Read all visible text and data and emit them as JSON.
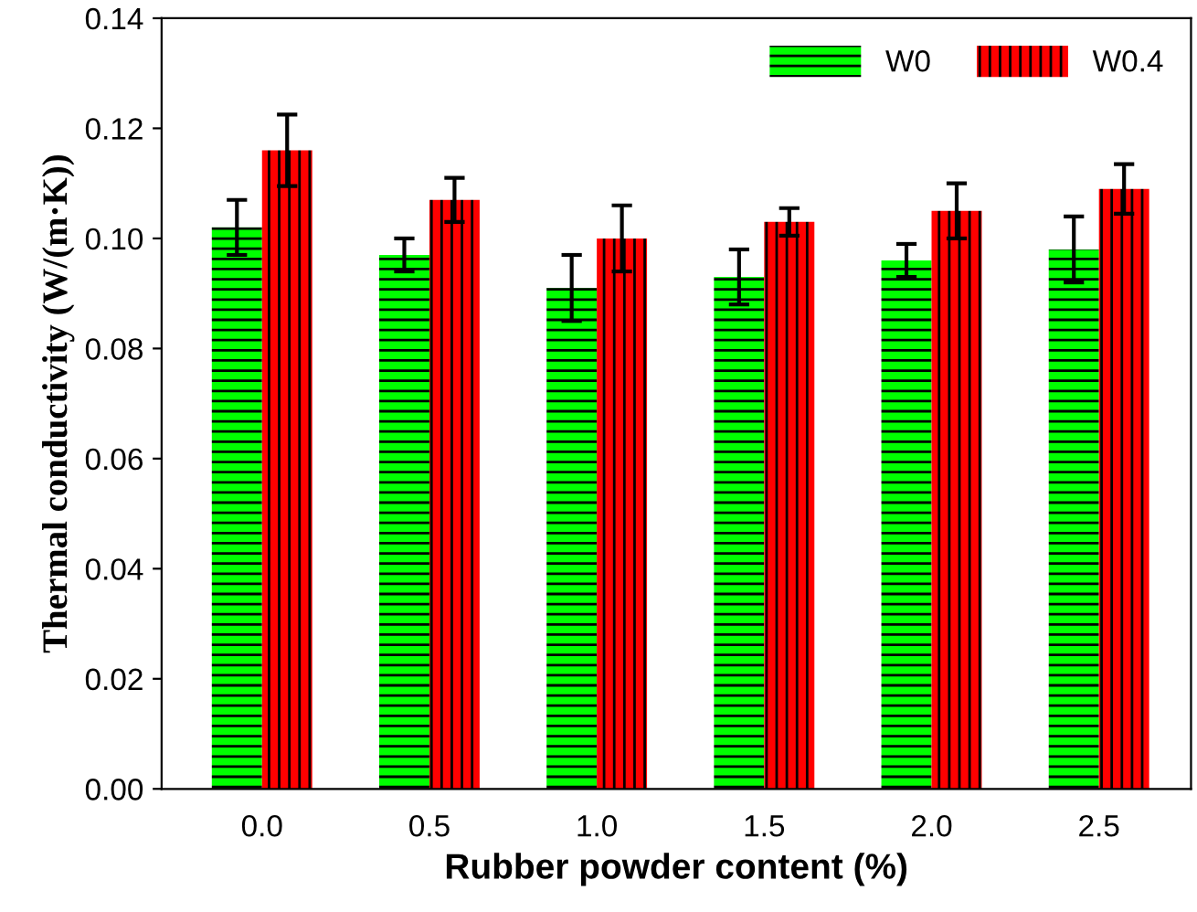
{
  "chart_data": {
    "type": "bar",
    "xlabel": "Rubber powder content (%)",
    "ylabel": "Thermal conductivity (W/(m·K))",
    "categories": [
      "0.0",
      "0.5",
      "1.0",
      "1.5",
      "2.0",
      "2.5"
    ],
    "series": [
      {
        "name": "W0",
        "color": "#00ff00",
        "values": [
          0.102,
          0.097,
          0.091,
          0.093,
          0.096,
          0.098
        ],
        "errors": [
          0.005,
          0.003,
          0.006,
          0.005,
          0.003,
          0.006
        ]
      },
      {
        "name": "W0.4",
        "color": "#ff0000",
        "values": [
          0.116,
          0.107,
          0.1,
          0.103,
          0.105,
          0.109
        ],
        "errors": [
          0.0065,
          0.004,
          0.006,
          0.0025,
          0.005,
          0.0045
        ]
      }
    ],
    "ylim": [
      0,
      0.14
    ],
    "yticks": [
      {
        "value": 0,
        "label": "0.00"
      },
      {
        "value": 0.02,
        "label": "0.02"
      },
      {
        "value": 0.04,
        "label": "0.04"
      },
      {
        "value": 0.06,
        "label": "0.06"
      },
      {
        "value": 0.08,
        "label": "0.08"
      },
      {
        "value": 0.1,
        "label": "0.10"
      },
      {
        "value": 0.12,
        "label": "0.12"
      },
      {
        "value": 0.14,
        "label": "0.14"
      }
    ],
    "legend": "top right",
    "grid": false
  }
}
